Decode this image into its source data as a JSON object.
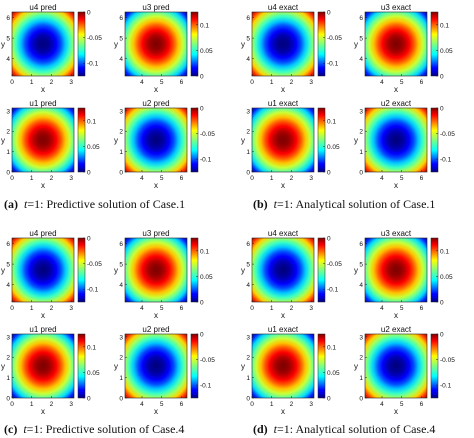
{
  "figure": {
    "colormap": "jet",
    "captions": [
      {
        "letter": "(a)",
        "var": "t",
        "text": "=1:  Predictive solution of Case.1"
      },
      {
        "letter": "(b)",
        "var": "t",
        "text": "=1:  Analytical solution of Case.1"
      },
      {
        "letter": "(c)",
        "var": "t",
        "text": "=1:  Predictive solution of Case.4"
      },
      {
        "letter": "(d)",
        "var": "t",
        "text": "=1:  Analytical solution of Case.4"
      }
    ]
  },
  "chart_data": [
    {
      "type": "heatmap",
      "title": "u4 pred",
      "xlabel": "x",
      "ylabel": "y",
      "xlim": [
        0,
        3.14
      ],
      "ylim": [
        3.14,
        6.28
      ],
      "xticks": [
        "0",
        "1",
        "2",
        "3"
      ],
      "yticks": [
        "4",
        "5",
        "6"
      ],
      "colorbar": {
        "range": [
          -0.125,
          0
        ],
        "ticks": [
          "0",
          "-0.05",
          "-0.1"
        ],
        "tick_values": [
          0,
          -0.05,
          -0.1
        ]
      },
      "field": "negative bowl, minimum at center"
    },
    {
      "type": "heatmap",
      "title": "u3 pred",
      "xlabel": "x",
      "ylabel": "y",
      "xlim": [
        3.14,
        6.28
      ],
      "ylim": [
        3.14,
        6.28
      ],
      "xticks": [
        "4",
        "5",
        "6"
      ],
      "yticks": [
        "4",
        "5",
        "6"
      ],
      "colorbar": {
        "range": [
          0,
          0.125
        ],
        "ticks": [
          "0.1",
          "0.05",
          "0"
        ],
        "tick_values": [
          0.1,
          0.05,
          0
        ]
      },
      "field": "positive bump, maximum at center"
    },
    {
      "type": "heatmap",
      "title": "u1 pred",
      "xlabel": "x",
      "ylabel": "y",
      "xlim": [
        0,
        3.14
      ],
      "ylim": [
        0,
        3.14
      ],
      "xticks": [
        "0",
        "1",
        "2",
        "3"
      ],
      "yticks": [
        "0",
        "1",
        "2",
        "3"
      ],
      "colorbar": {
        "range": [
          0,
          0.125
        ],
        "ticks": [
          "0.1",
          "0.05",
          "0"
        ],
        "tick_values": [
          0.1,
          0.05,
          0
        ]
      },
      "field": "positive bump, maximum at center"
    },
    {
      "type": "heatmap",
      "title": "u2 pred",
      "xlabel": "x",
      "ylabel": "y",
      "xlim": [
        3.14,
        6.28
      ],
      "ylim": [
        0,
        3.14
      ],
      "xticks": [
        "4",
        "5",
        "6"
      ],
      "yticks": [
        "0",
        "1",
        "2",
        "3"
      ],
      "colorbar": {
        "range": [
          -0.125,
          0
        ],
        "ticks": [
          "0",
          "-0.05",
          "-0.1"
        ],
        "tick_values": [
          0,
          -0.05,
          -0.1
        ]
      },
      "field": "negative bowl, minimum at center"
    },
    {
      "type": "heatmap",
      "title": "u4 exact",
      "xlabel": "x",
      "ylabel": "y",
      "xlim": [
        0,
        3.14
      ],
      "ylim": [
        3.14,
        6.28
      ],
      "xticks": [
        "0",
        "1",
        "2",
        "3"
      ],
      "yticks": [
        "4",
        "5",
        "6"
      ],
      "colorbar": {
        "range": [
          -0.125,
          0
        ],
        "ticks": [
          "0",
          "-0.05",
          "-0.1"
        ],
        "tick_values": [
          0,
          -0.05,
          -0.1
        ]
      },
      "field": "negative bowl, minimum at center"
    },
    {
      "type": "heatmap",
      "title": "u3 exact",
      "xlabel": "x",
      "ylabel": "y",
      "xlim": [
        3.14,
        6.28
      ],
      "ylim": [
        3.14,
        6.28
      ],
      "xticks": [
        "4",
        "5",
        "6"
      ],
      "yticks": [
        "4",
        "5",
        "6"
      ],
      "colorbar": {
        "range": [
          0,
          0.125
        ],
        "ticks": [
          "0.1",
          "0.05",
          "0"
        ],
        "tick_values": [
          0.1,
          0.05,
          0
        ]
      },
      "field": "positive bump, maximum at center"
    },
    {
      "type": "heatmap",
      "title": "u1 exact",
      "xlabel": "x",
      "ylabel": "y",
      "xlim": [
        0,
        3.14
      ],
      "ylim": [
        0,
        3.14
      ],
      "xticks": [
        "0",
        "1",
        "2",
        "3"
      ],
      "yticks": [
        "0",
        "1",
        "2",
        "3"
      ],
      "colorbar": {
        "range": [
          0,
          0.125
        ],
        "ticks": [
          "0.1",
          "0.05",
          "0"
        ],
        "tick_values": [
          0.1,
          0.05,
          0
        ]
      },
      "field": "positive bump, maximum at center"
    },
    {
      "type": "heatmap",
      "title": "u2 exact",
      "xlabel": "x",
      "ylabel": "y",
      "xlim": [
        3.14,
        6.28
      ],
      "ylim": [
        0,
        3.14
      ],
      "xticks": [
        "4",
        "5",
        "6"
      ],
      "yticks": [
        "0",
        "1",
        "2",
        "3"
      ],
      "colorbar": {
        "range": [
          -0.125,
          0
        ],
        "ticks": [
          "0",
          "-0.05",
          "-0.1"
        ],
        "tick_values": [
          0,
          -0.05,
          -0.1
        ]
      },
      "field": "negative bowl, minimum at center"
    },
    {
      "type": "heatmap",
      "title": "u4 pred",
      "xlabel": "x",
      "ylabel": "y",
      "xlim": [
        0,
        3.14
      ],
      "ylim": [
        3.14,
        6.28
      ],
      "xticks": [
        "0",
        "1",
        "2",
        "3"
      ],
      "yticks": [
        "4",
        "5",
        "6"
      ],
      "colorbar": {
        "range": [
          -0.125,
          0
        ],
        "ticks": [
          "0",
          "-0.05",
          "-0.1"
        ],
        "tick_values": [
          0,
          -0.05,
          -0.1
        ]
      },
      "field": "negative bowl, minimum at center"
    },
    {
      "type": "heatmap",
      "title": "u3 pred",
      "xlabel": "x",
      "ylabel": "y",
      "xlim": [
        3.14,
        6.28
      ],
      "ylim": [
        3.14,
        6.28
      ],
      "xticks": [
        "4",
        "5",
        "6"
      ],
      "yticks": [
        "4",
        "5",
        "6"
      ],
      "colorbar": {
        "range": [
          0,
          0.125
        ],
        "ticks": [
          "0.1",
          "0.05",
          "0"
        ],
        "tick_values": [
          0.1,
          0.05,
          0
        ]
      },
      "field": "positive bump, maximum at center"
    },
    {
      "type": "heatmap",
      "title": "u1 pred",
      "xlabel": "x",
      "ylabel": "y",
      "xlim": [
        0,
        3.14
      ],
      "ylim": [
        0,
        3.14
      ],
      "xticks": [
        "0",
        "1",
        "2",
        "3"
      ],
      "yticks": [
        "0",
        "1",
        "2",
        "3"
      ],
      "colorbar": {
        "range": [
          0,
          0.125
        ],
        "ticks": [
          "0.1",
          "0.05",
          "0"
        ],
        "tick_values": [
          0.1,
          0.05,
          0
        ]
      },
      "field": "positive bump, maximum at center"
    },
    {
      "type": "heatmap",
      "title": "u2 pred",
      "xlabel": "x",
      "ylabel": "y",
      "xlim": [
        3.14,
        6.28
      ],
      "ylim": [
        0,
        3.14
      ],
      "xticks": [
        "4",
        "5",
        "6"
      ],
      "yticks": [
        "0",
        "1",
        "2",
        "3"
      ],
      "colorbar": {
        "range": [
          -0.125,
          0
        ],
        "ticks": [
          "0",
          "-0.05",
          "-0.1"
        ],
        "tick_values": [
          0,
          -0.05,
          -0.1
        ]
      },
      "field": "negative bowl, minimum at center"
    },
    {
      "type": "heatmap",
      "title": "u4 exact",
      "xlabel": "x",
      "ylabel": "y",
      "xlim": [
        0,
        3.14
      ],
      "ylim": [
        3.14,
        6.28
      ],
      "xticks": [
        "0",
        "1",
        "2",
        "3"
      ],
      "yticks": [
        "4",
        "5",
        "6"
      ],
      "colorbar": {
        "range": [
          -0.125,
          0
        ],
        "ticks": [
          "0",
          "-0.05",
          "-0.1"
        ],
        "tick_values": [
          0,
          -0.05,
          -0.1
        ]
      },
      "field": "negative bowl, minimum at center"
    },
    {
      "type": "heatmap",
      "title": "u3 exact",
      "xlabel": "x",
      "ylabel": "y",
      "xlim": [
        3.14,
        6.28
      ],
      "ylim": [
        3.14,
        6.28
      ],
      "xticks": [
        "4",
        "5",
        "6"
      ],
      "yticks": [
        "4",
        "5",
        "6"
      ],
      "colorbar": {
        "range": [
          0,
          0.125
        ],
        "ticks": [
          "0.1",
          "0.05",
          "0"
        ],
        "tick_values": [
          0.1,
          0.05,
          0
        ]
      },
      "field": "positive bump, maximum at center"
    },
    {
      "type": "heatmap",
      "title": "u1 exact",
      "xlabel": "x",
      "ylabel": "y",
      "xlim": [
        0,
        3.14
      ],
      "ylim": [
        0,
        3.14
      ],
      "xticks": [
        "0",
        "1",
        "2",
        "3"
      ],
      "yticks": [
        "0",
        "1",
        "2",
        "3"
      ],
      "colorbar": {
        "range": [
          0,
          0.125
        ],
        "ticks": [
          "0.1",
          "0.05",
          "0"
        ],
        "tick_values": [
          0.1,
          0.05,
          0
        ]
      },
      "field": "positive bump, maximum at center"
    },
    {
      "type": "heatmap",
      "title": "u2 exact",
      "xlabel": "x",
      "ylabel": "y",
      "xlim": [
        3.14,
        6.28
      ],
      "ylim": [
        0,
        3.14
      ],
      "xticks": [
        "4",
        "5",
        "6"
      ],
      "yticks": [
        "0",
        "1",
        "2",
        "3"
      ],
      "colorbar": {
        "range": [
          -0.125,
          0
        ],
        "ticks": [
          "0",
          "-0.05",
          "-0.1"
        ],
        "tick_values": [
          0,
          -0.05,
          -0.1
        ]
      },
      "field": "negative bowl, minimum at center"
    }
  ]
}
